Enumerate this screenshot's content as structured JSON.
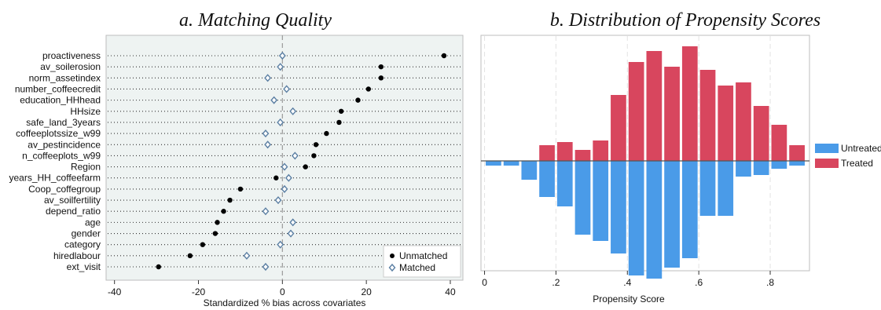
{
  "chart_data": [
    {
      "type": "scatter",
      "title": "a.   Matching Quality",
      "xlabel": "Standardized % bias across covariates",
      "ylabel": "",
      "xlim": [
        -42,
        43
      ],
      "xticks": [
        -40,
        -20,
        0,
        20,
        40
      ],
      "reference_line_x": 0,
      "grid": false,
      "legend_position": "bottom-right",
      "categories": [
        "proactiveness",
        "av_soilerosion",
        "norm_assetindex",
        "number_coffeecredit",
        "education_HHhead",
        "HHsize",
        "safe_land_3years",
        "coffeeplotssize_w99",
        "av_pestincidence",
        "n_coffeeplots_w99",
        "Region",
        "years_HH_coffeefarm",
        "Coop_coffegroup",
        "av_soilfertility",
        "depend_ratio",
        "age",
        "gender",
        "category",
        "hiredlabour",
        "ext_visit"
      ],
      "series": [
        {
          "name": "Unmatched",
          "marker": "circle",
          "color": "#000000",
          "values": [
            38.5,
            23.5,
            23.5,
            20.5,
            18,
            14,
            13.5,
            10.5,
            8,
            7.5,
            5.5,
            -1.5,
            -10,
            -12.5,
            -14,
            -15.5,
            -16,
            -19,
            -22,
            -29.5
          ]
        },
        {
          "name": "Matched",
          "marker": "diamond",
          "color": "#5b7fa3",
          "values": [
            0,
            -0.5,
            -3.5,
            1,
            -2,
            2.5,
            -0.5,
            -4,
            -3.5,
            3,
            0.5,
            1.5,
            0.5,
            -1,
            -4,
            2.5,
            2,
            -0.5,
            -8.5,
            -4
          ]
        }
      ]
    },
    {
      "type": "bar",
      "title": "b.   Distribution of Propensity Scores",
      "xlabel": "Propensity Score",
      "ylabel": "",
      "xlim": [
        -0.01,
        0.91
      ],
      "xticks": [
        0,
        0.2,
        0.4,
        0.6,
        0.8
      ],
      "xtick_labels": [
        "0",
        ".2",
        ".4",
        ".6",
        ".8"
      ],
      "grid": true,
      "legend_position": "right",
      "bin_centers": [
        0.025,
        0.075,
        0.125,
        0.175,
        0.225,
        0.275,
        0.325,
        0.375,
        0.425,
        0.475,
        0.525,
        0.575,
        0.625,
        0.675,
        0.725,
        0.775,
        0.825,
        0.875
      ],
      "series": [
        {
          "name": "Untreated",
          "color": "#4a9be8",
          "values": [
            0.3,
            0.3,
            1.2,
            2.3,
            2.9,
            4.7,
            5.1,
            5.9,
            7.3,
            7.5,
            6.8,
            6.2,
            3.5,
            3.5,
            1.0,
            0.9,
            0.5,
            0.3
          ]
        },
        {
          "name": "Treated",
          "color": "#d8465e",
          "values": [
            0,
            0,
            0,
            1.0,
            1.2,
            0.7,
            1.3,
            4.2,
            6.3,
            7.0,
            6.0,
            7.3,
            5.8,
            4.8,
            5.0,
            3.5,
            2.3,
            1.0
          ]
        }
      ]
    }
  ]
}
